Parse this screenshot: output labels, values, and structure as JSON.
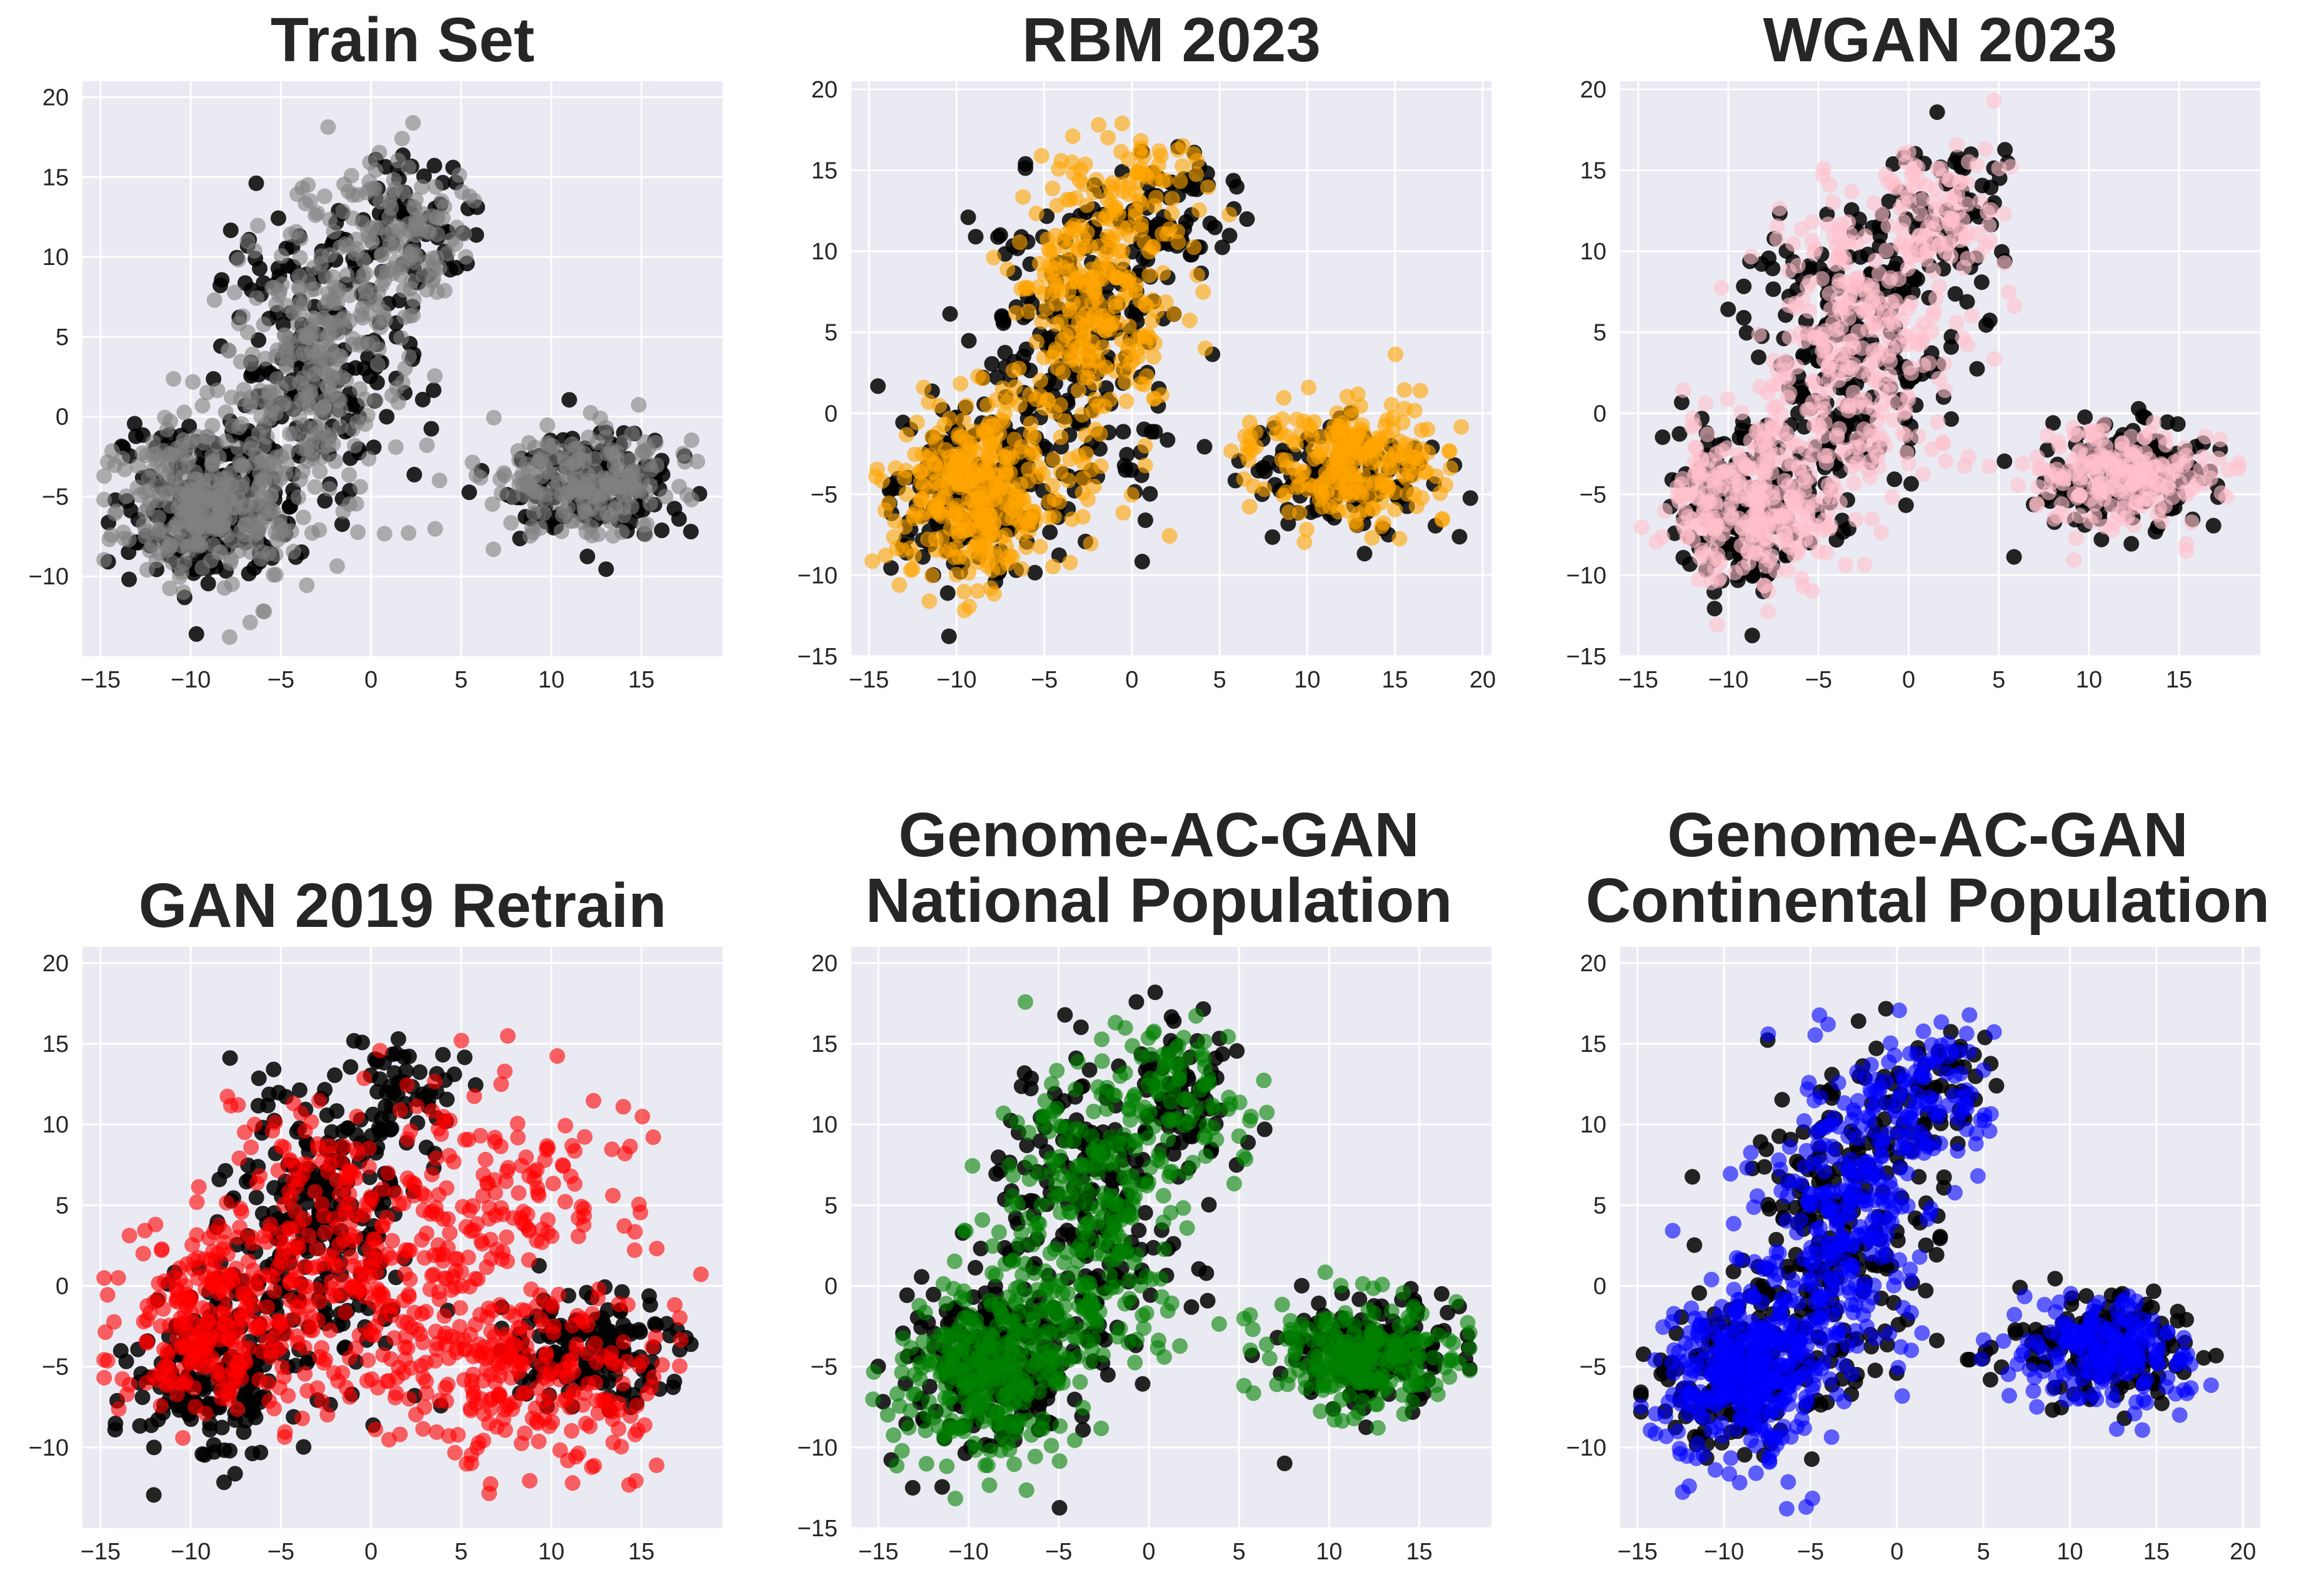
{
  "chart_data": [
    {
      "type": "scatter",
      "title_lines": [
        "Train Set"
      ],
      "xlim": [
        -16,
        19.5
      ],
      "ylim": [
        -15,
        21
      ],
      "xticks": [
        -15,
        -10,
        -5,
        0,
        5,
        10,
        15
      ],
      "yticks": [
        -10,
        -5,
        0,
        5,
        10,
        15,
        20
      ],
      "grid": true,
      "series": [
        {
          "name": "Real (black)",
          "color": "#000000",
          "seed": 11
        },
        {
          "name": "Train Set",
          "color": "#808080",
          "seed": 12,
          "shape": "real",
          "points": 900
        }
      ]
    },
    {
      "type": "scatter",
      "title_lines": [
        "RBM 2023"
      ],
      "xlim": [
        -16,
        20.5
      ],
      "ylim": [
        -15,
        20.5
      ],
      "xticks": [
        -15,
        -10,
        -5,
        0,
        5,
        10,
        15,
        20
      ],
      "yticks": [
        -15,
        -10,
        -5,
        0,
        5,
        10,
        15,
        20
      ],
      "grid": true,
      "series": [
        {
          "name": "Real (black)",
          "color": "#000000",
          "seed": 21
        },
        {
          "name": "RBM 2023",
          "color": "#FFA500",
          "seed": 22,
          "shape": "rbm",
          "points": 900
        }
      ]
    },
    {
      "type": "scatter",
      "title_lines": [
        "WGAN 2023"
      ],
      "xlim": [
        -16,
        19.5
      ],
      "ylim": [
        -15,
        20.5
      ],
      "xticks": [
        -15,
        -10,
        -5,
        0,
        5,
        10,
        15
      ],
      "yticks": [
        -15,
        -10,
        -5,
        0,
        5,
        10,
        15,
        20
      ],
      "grid": true,
      "series": [
        {
          "name": "Real (black)",
          "color": "#000000",
          "seed": 31
        },
        {
          "name": "WGAN 2023",
          "color": "#FFC0CB",
          "seed": 32,
          "shape": "real",
          "points": 900
        }
      ]
    },
    {
      "type": "scatter",
      "title_lines": [
        "GAN 2019 Retrain"
      ],
      "xlim": [
        -16,
        19.5
      ],
      "ylim": [
        -15,
        21
      ],
      "xticks": [
        -15,
        -10,
        -5,
        0,
        5,
        10,
        15
      ],
      "yticks": [
        -10,
        -5,
        0,
        5,
        10,
        15,
        20
      ],
      "grid": true,
      "series": [
        {
          "name": "Real (black)",
          "color": "#000000",
          "seed": 41
        },
        {
          "name": "GAN 2019 Retrain",
          "color": "#FF0000",
          "seed": 42,
          "shape": "gan2019",
          "points": 900
        }
      ]
    },
    {
      "type": "scatter",
      "title_lines": [
        "Genome-AC-GAN",
        "National Population"
      ],
      "xlim": [
        -16.5,
        19
      ],
      "ylim": [
        -15,
        21
      ],
      "xticks": [
        -15,
        -10,
        -5,
        0,
        5,
        10,
        15
      ],
      "yticks": [
        -15,
        -10,
        -5,
        0,
        5,
        10,
        15,
        20
      ],
      "grid": true,
      "series": [
        {
          "name": "Real (black)",
          "color": "#000000",
          "seed": 51
        },
        {
          "name": "Genome-AC-GAN National Population",
          "color": "#008000",
          "seed": 52,
          "shape": "real",
          "points": 900
        }
      ]
    },
    {
      "type": "scatter",
      "title_lines": [
        "Genome-AC-GAN",
        "Continental Population"
      ],
      "xlim": [
        -16,
        21
      ],
      "ylim": [
        -15,
        21
      ],
      "xticks": [
        -15,
        -10,
        -5,
        0,
        5,
        10,
        15,
        20
      ],
      "yticks": [
        -10,
        -5,
        0,
        5,
        10,
        15,
        20
      ],
      "grid": true,
      "series": [
        {
          "name": "Real (black)",
          "color": "#000000",
          "seed": 61
        },
        {
          "name": "Genome-AC-GAN Continental Population",
          "color": "#0000FF",
          "seed": 62,
          "shape": "real",
          "points": 900
        }
      ]
    }
  ]
}
